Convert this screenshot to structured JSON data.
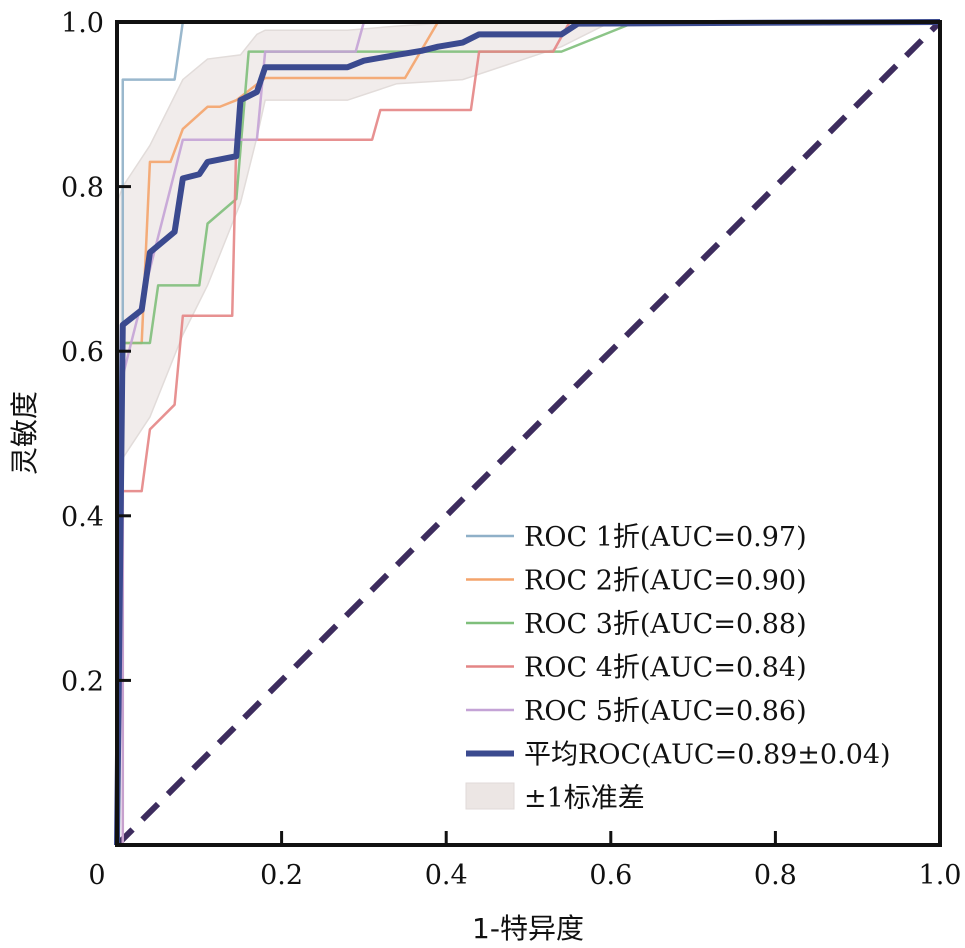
{
  "chart_data": {
    "type": "line",
    "title": "",
    "xlabel": "1-特异度",
    "ylabel": "灵敏度",
    "xlim": [
      0,
      1.0
    ],
    "ylim": [
      0,
      1.0
    ],
    "x_ticks": [
      {
        "value": 0,
        "label": "0"
      },
      {
        "value": 0.2,
        "label": "0.2"
      },
      {
        "value": 0.4,
        "label": "0.4"
      },
      {
        "value": 0.6,
        "label": "0.6"
      },
      {
        "value": 0.8,
        "label": "0.8"
      },
      {
        "value": 1.0,
        "label": "1.0"
      }
    ],
    "y_ticks": [
      {
        "value": 0.2,
        "label": "0.2"
      },
      {
        "value": 0.4,
        "label": "0.4"
      },
      {
        "value": 0.6,
        "label": "0.6"
      },
      {
        "value": 0.8,
        "label": "0.8"
      },
      {
        "value": 1.0,
        "label": "1.0"
      }
    ],
    "grid": false,
    "legend_position": "lower-right",
    "series": [
      {
        "name": "ROC 1折(AUC=0.97)",
        "color": "#8fb0c8",
        "width": "thin",
        "x": [
          0,
          0.007,
          0.007,
          0.07,
          0.08,
          1.0
        ],
        "y": [
          0,
          0,
          0.93,
          0.93,
          1.0,
          1.0
        ]
      },
      {
        "name": "ROC 2折(AUC=0.90)",
        "color": "#f4a46b",
        "width": "thin",
        "x": [
          0,
          0.007,
          0.007,
          0.03,
          0.04,
          0.065,
          0.08,
          0.11,
          0.125,
          0.145,
          0.18,
          0.35,
          0.39,
          1.0
        ],
        "y": [
          0,
          0,
          0.61,
          0.61,
          0.83,
          0.83,
          0.87,
          0.897,
          0.897,
          0.905,
          0.932,
          0.932,
          1.0,
          1.0
        ]
      },
      {
        "name": "ROC 3折(AUC=0.88)",
        "color": "#7fbf7b",
        "width": "thin",
        "x": [
          0,
          0.007,
          0.007,
          0.04,
          0.05,
          0.1,
          0.11,
          0.145,
          0.16,
          0.54,
          0.63,
          1.0
        ],
        "y": [
          0,
          0,
          0.61,
          0.61,
          0.68,
          0.68,
          0.755,
          0.785,
          0.964,
          0.964,
          1.0,
          1.0
        ]
      },
      {
        "name": "ROC 4折(AUC=0.84)",
        "color": "#e48585",
        "width": "thin",
        "x": [
          0,
          0.007,
          0.007,
          0.03,
          0.04,
          0.07,
          0.08,
          0.14,
          0.145,
          0.31,
          0.32,
          0.43,
          0.44,
          0.53,
          0.55,
          1.0
        ],
        "y": [
          0,
          0,
          0.43,
          0.43,
          0.505,
          0.535,
          0.643,
          0.643,
          0.857,
          0.857,
          0.893,
          0.893,
          0.964,
          0.964,
          1.0,
          1.0
        ]
      },
      {
        "name": "ROC 5折(AUC=0.86)",
        "color": "#c4a3d6",
        "width": "thin",
        "x": [
          0,
          0.007,
          0.007,
          0.08,
          0.17,
          0.18,
          0.29,
          0.3,
          1.0
        ],
        "y": [
          0,
          0,
          0.57,
          0.857,
          0.857,
          0.964,
          0.964,
          1.0,
          1.0
        ]
      },
      {
        "name": "平均ROC(AUC=0.89±0.04)",
        "color": "#3b4a8f",
        "width": "thick",
        "x": [
          0,
          0.007,
          0.03,
          0.04,
          0.07,
          0.08,
          0.1,
          0.11,
          0.145,
          0.15,
          0.17,
          0.18,
          0.28,
          0.3,
          0.34,
          0.37,
          0.39,
          0.42,
          0.44,
          0.54,
          0.56,
          1.0
        ],
        "y": [
          0,
          0.632,
          0.65,
          0.72,
          0.745,
          0.81,
          0.815,
          0.83,
          0.837,
          0.905,
          0.915,
          0.945,
          0.945,
          0.953,
          0.96,
          0.965,
          0.97,
          0.975,
          0.985,
          0.985,
          0.998,
          1.0
        ]
      }
    ],
    "band": {
      "name": "±1标准差",
      "color": "#ece6e4",
      "x": [
        0,
        0.007,
        0.04,
        0.08,
        0.11,
        0.15,
        0.17,
        0.18,
        0.28,
        0.34,
        0.42,
        0.54,
        0.6,
        1.0
      ],
      "upper": [
        0.78,
        0.8,
        0.85,
        0.93,
        0.955,
        0.96,
        0.985,
        0.99,
        0.99,
        0.995,
        1.0,
        1.0,
        1.0,
        1.0
      ],
      "lower": [
        0.46,
        0.47,
        0.52,
        0.62,
        0.68,
        0.78,
        0.86,
        0.905,
        0.905,
        0.925,
        0.93,
        0.97,
        1.0,
        1.0
      ]
    },
    "reference_line": {
      "name": "chance",
      "color": "#3d2c5e",
      "style": "dashed",
      "x": [
        0,
        1
      ],
      "y": [
        0,
        1
      ]
    }
  },
  "legend": {
    "items": [
      {
        "label": "ROC 1折(AUC=0.97)",
        "color": "#8fb0c8",
        "kind": "line-thin"
      },
      {
        "label": "ROC 2折(AUC=0.90)",
        "color": "#f4a46b",
        "kind": "line-thin"
      },
      {
        "label": "ROC 3折(AUC=0.88)",
        "color": "#7fbf7b",
        "kind": "line-thin"
      },
      {
        "label": "ROC 4折(AUC=0.84)",
        "color": "#e48585",
        "kind": "line-thin"
      },
      {
        "label": "ROC 5折(AUC=0.86)",
        "color": "#c4a3d6",
        "kind": "line-thin"
      },
      {
        "label": "平均ROC(AUC=0.89±0.04)",
        "color": "#3b4a8f",
        "kind": "line-thick"
      },
      {
        "label": "±1标准差",
        "color": "#ece6e4",
        "kind": "patch"
      }
    ]
  }
}
